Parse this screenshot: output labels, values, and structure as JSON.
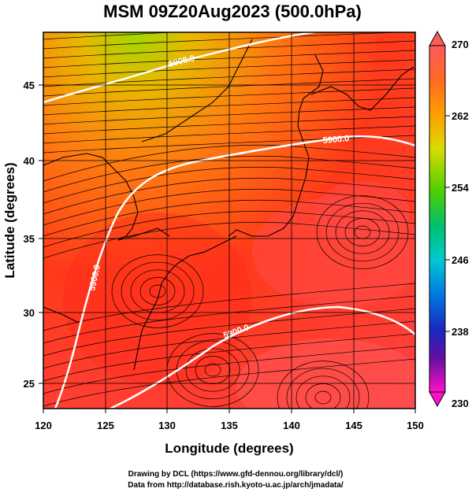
{
  "title": "MSM 09Z20Aug2023 (500.0hPa)",
  "x_axis": {
    "label": "Longitude (degrees)",
    "ticks": [
      "120",
      "125",
      "130",
      "135",
      "140",
      "145",
      "150"
    ]
  },
  "y_axis": {
    "label": "Latitude (degrees)",
    "ticks": [
      "25",
      "30",
      "35",
      "40",
      "45"
    ]
  },
  "colorbar": {
    "labels": [
      "270",
      "262",
      "254",
      "246",
      "238",
      "230"
    ],
    "colors": [
      "#ff5f5f",
      "#ff7a1a",
      "#ffb000",
      "#d8e000",
      "#7ad000",
      "#10c060",
      "#00c8c8",
      "#0090e0",
      "#1030d0",
      "#4010a0",
      "#9010b0",
      "#ff10c8"
    ]
  },
  "contour_labels": [
    "5900.0",
    "5900.0",
    "5900.0",
    "5900.0",
    "5900.0"
  ],
  "credits": {
    "line1": "Drawing by DCL (https://www.gfd-dennou.org/library/dcl/)",
    "line2": "Data from http://database.rish.kyoto-u.ac.jp/arch/jmadata/"
  },
  "chart_data": {
    "type": "heatmap",
    "title": "MSM 09Z20Aug2023 (500.0hPa)",
    "xlabel": "Longitude (degrees)",
    "ylabel": "Latitude (degrees)",
    "xlim": [
      120,
      150
    ],
    "ylim": [
      22.4,
      47.6
    ],
    "colorbar_range": [
      230,
      270
    ],
    "grid": true,
    "contour_levels": [
      5900.0
    ]
  }
}
